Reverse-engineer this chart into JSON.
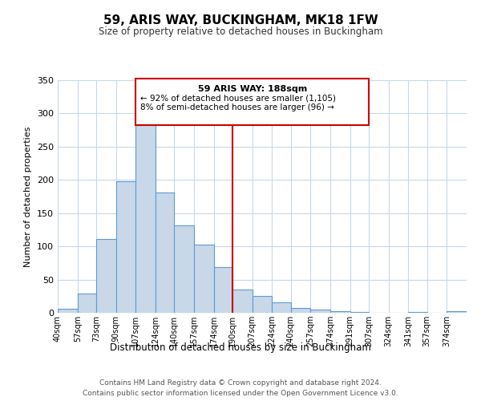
{
  "title": "59, ARIS WAY, BUCKINGHAM, MK18 1FW",
  "subtitle": "Size of property relative to detached houses in Buckingham",
  "xlabel": "Distribution of detached houses by size in Buckingham",
  "ylabel": "Number of detached properties",
  "bin_labels": [
    "40sqm",
    "57sqm",
    "73sqm",
    "90sqm",
    "107sqm",
    "124sqm",
    "140sqm",
    "157sqm",
    "174sqm",
    "190sqm",
    "207sqm",
    "224sqm",
    "240sqm",
    "257sqm",
    "274sqm",
    "291sqm",
    "307sqm",
    "324sqm",
    "341sqm",
    "357sqm",
    "374sqm"
  ],
  "bin_edges": [
    40,
    57,
    73,
    90,
    107,
    124,
    140,
    157,
    174,
    190,
    207,
    224,
    240,
    257,
    274,
    291,
    307,
    324,
    341,
    357,
    374,
    391
  ],
  "bar_heights": [
    6,
    29,
    111,
    198,
    293,
    181,
    131,
    103,
    69,
    35,
    25,
    16,
    7,
    5,
    3,
    1,
    0,
    0,
    1,
    0,
    2
  ],
  "bar_color": "#c8d8e8",
  "bar_edge_color": "#5b9bd5",
  "vline_x": 190,
  "vline_color": "#cc0000",
  "annotation_title": "59 ARIS WAY: 188sqm",
  "annotation_line1": "← 92% of detached houses are smaller (1,105)",
  "annotation_line2": "8% of semi-detached houses are larger (96) →",
  "annotation_box_color": "#cc0000",
  "ylim": [
    0,
    350
  ],
  "yticks": [
    0,
    50,
    100,
    150,
    200,
    250,
    300,
    350
  ],
  "footer_line1": "Contains HM Land Registry data © Crown copyright and database right 2024.",
  "footer_line2": "Contains public sector information licensed under the Open Government Licence v3.0.",
  "bg_color": "#ffffff",
  "grid_color": "#c8d8e8"
}
